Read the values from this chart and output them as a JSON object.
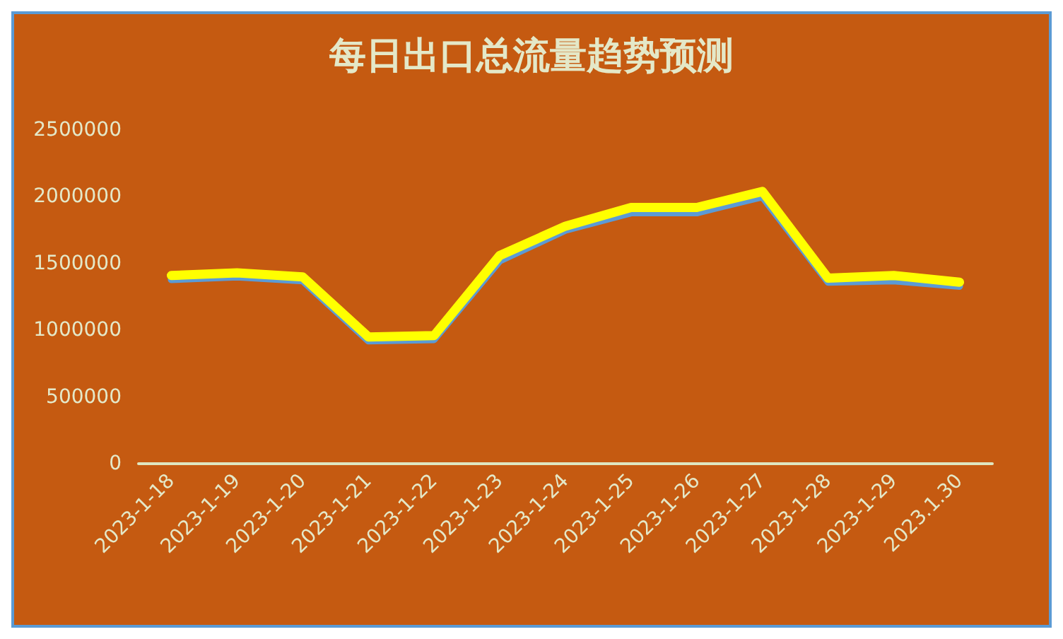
{
  "chart_data": {
    "type": "line",
    "title": "每日出口总流量趋势预测",
    "categories": [
      "2023-1-18",
      "2023-1-19",
      "2023-1-20",
      "2023-1-21",
      "2023-1-22",
      "2023-1-23",
      "2023-1-24",
      "2023-1-25",
      "2023-1-26",
      "2023-1-27",
      "2023-1-28",
      "2023-1-29",
      "2023.1.30"
    ],
    "series": [
      {
        "color": "#5b9bd5",
        "values": [
          1380000,
          1400000,
          1370000,
          920000,
          930000,
          1520000,
          1750000,
          1880000,
          1880000,
          2000000,
          1360000,
          1370000,
          1330000
        ]
      },
      {
        "color": "#ffff00",
        "values": [
          1410000,
          1430000,
          1400000,
          950000,
          960000,
          1560000,
          1780000,
          1920000,
          1920000,
          2040000,
          1390000,
          1410000,
          1360000
        ]
      }
    ],
    "ylim": [
      0,
      2500000
    ],
    "yticks": [
      0,
      500000,
      1000000,
      1500000,
      2000000,
      2500000
    ],
    "grid": false,
    "marker": "none",
    "line_style": "solid"
  }
}
